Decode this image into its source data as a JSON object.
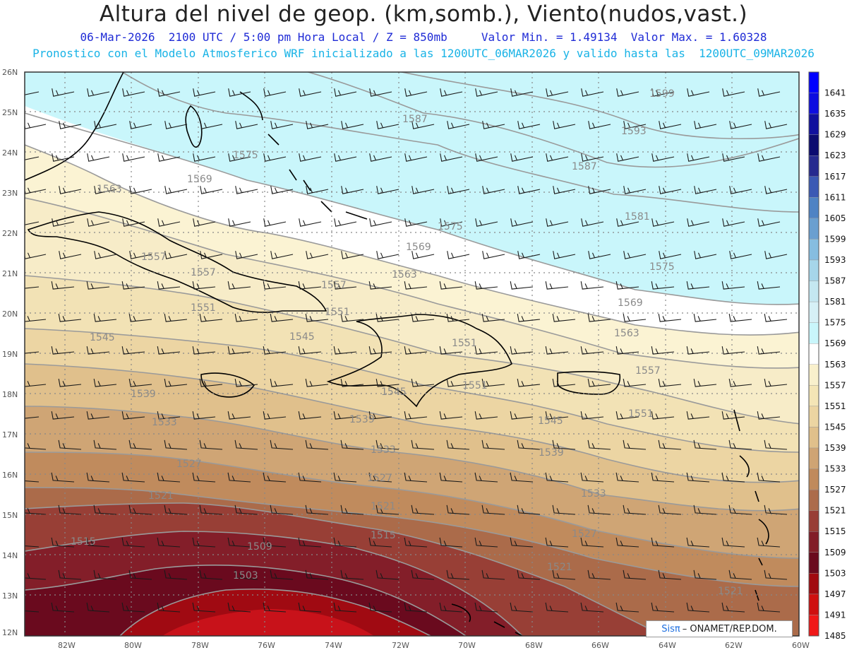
{
  "header": {
    "title": "Altura del nivel de geop. (km,somb.), Viento(nudos,vast.)",
    "subtitle_line1": "06-Mar-2026  2100 UTC / 5:00 pm Hora Local / Z = 850mb     Valor Min. = 1.49134  Valor Max. = 1.60328",
    "subtitle_line2": "Pronostico con el Modelo Atmosferico WRF inicializado a las 1200UTC_06MAR2026 y valido hasta las  1200UTC_09MAR2026"
  },
  "map": {
    "lat_labels": [
      "26N",
      "25N",
      "24N",
      "23N",
      "22N",
      "21N",
      "20N",
      "19N",
      "18N",
      "17N",
      "16N",
      "15N",
      "14N",
      "13N",
      "12N"
    ],
    "lon_labels": [
      "82W",
      "80W",
      "78W",
      "76W",
      "74W",
      "72W",
      "70W",
      "68W",
      "66W",
      "64W",
      "62W",
      "60W"
    ],
    "contour_labels": [
      {
        "text": "1599"
      },
      {
        "text": "1593"
      },
      {
        "text": "1587"
      },
      {
        "text": "1587"
      },
      {
        "text": "1581"
      },
      {
        "text": "1575"
      },
      {
        "text": "1575"
      },
      {
        "text": "1575"
      },
      {
        "text": "1569"
      },
      {
        "text": "1569"
      },
      {
        "text": "1569"
      },
      {
        "text": "1563"
      },
      {
        "text": "1563"
      },
      {
        "text": "1563"
      },
      {
        "text": "1557"
      },
      {
        "text": "1557"
      },
      {
        "text": "1557"
      },
      {
        "text": "1557"
      },
      {
        "text": "1551"
      },
      {
        "text": "1551"
      },
      {
        "text": "1551"
      },
      {
        "text": "1551"
      },
      {
        "text": "1551"
      },
      {
        "text": "1545"
      },
      {
        "text": "1545"
      },
      {
        "text": "1545"
      },
      {
        "text": "1545"
      },
      {
        "text": "1539"
      },
      {
        "text": "1539"
      },
      {
        "text": "1539"
      },
      {
        "text": "1533"
      },
      {
        "text": "1533"
      },
      {
        "text": "1533"
      },
      {
        "text": "1527"
      },
      {
        "text": "1527"
      },
      {
        "text": "1527"
      },
      {
        "text": "1521"
      },
      {
        "text": "1521"
      },
      {
        "text": "1521"
      },
      {
        "text": "1521"
      },
      {
        "text": "1515"
      },
      {
        "text": "1515"
      },
      {
        "text": "1509"
      },
      {
        "text": "1503"
      }
    ],
    "wind_direction": "from east-southeast, easterly trade winds"
  },
  "colorbar": {
    "levels": [
      "1641",
      "1635",
      "1629",
      "1623",
      "1617",
      "1611",
      "1605",
      "1599",
      "1593",
      "1587",
      "1581",
      "1575",
      "1569",
      "1563",
      "1557",
      "1551",
      "1545",
      "1539",
      "1533",
      "1527",
      "1521",
      "1515",
      "1509",
      "1503",
      "1497",
      "1491",
      "1485"
    ],
    "colors": [
      "#0000ff",
      "#0d0de0",
      "#10109e",
      "#0b0b70",
      "#262a8f",
      "#3b59b4",
      "#4f83c4",
      "#6a9fd0",
      "#86bde0",
      "#a6d6ea",
      "#c4e7f1",
      "#d6f0f6",
      "#c9f6fb",
      "#ffffff",
      "#f9f0cc",
      "#f4e5b6",
      "#ecd5a2",
      "#e0c08b",
      "#cfa474",
      "#c08a5c",
      "#ac6c4b",
      "#983e36",
      "#821d28",
      "#6a0a1e",
      "#a10a10",
      "#cf1010",
      "#f01818"
    ]
  },
  "branding": {
    "sis": "Sis",
    "pi": "π",
    "rest": "– ONAMET/REP.DOM."
  }
}
